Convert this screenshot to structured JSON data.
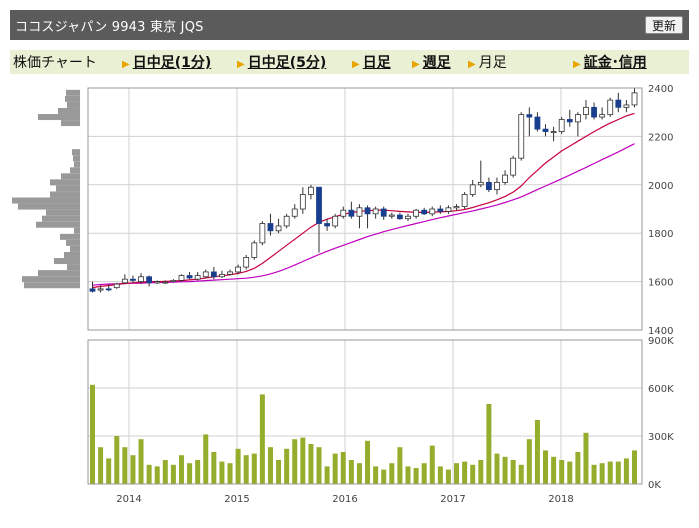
{
  "header": {
    "title": "ココスジャパン 9943 東京 JQS",
    "refresh_label": "更新"
  },
  "tabs": [
    {
      "label": "株価チャート",
      "link": false
    },
    {
      "label": "日中足(1分)",
      "link": true
    },
    {
      "label": "日中足(5分)",
      "link": true
    },
    {
      "label": "日足",
      "link": true
    },
    {
      "label": "週足",
      "link": true
    },
    {
      "label": "月足",
      "link": false
    },
    {
      "label": "証金･信用",
      "link": true
    }
  ],
  "colors": {
    "up": "#ffffff",
    "down": "#1b3f8f",
    "ma_short": "#c8003c",
    "ma_long": "#c000c0",
    "volume": "#94ad2d",
    "grid": "#d0d0d0",
    "header_bg": "#5b5b5b",
    "tab_bg": "#eaf0d4"
  },
  "chart_data": [
    {
      "type": "candlestick",
      "ylim": [
        1400,
        2400
      ],
      "yticks": [
        "2400",
        "2200",
        "2000",
        "1800",
        "1600",
        "1400"
      ],
      "xticks": [
        "2014",
        "2015",
        "2016",
        "2017",
        "2018"
      ],
      "candles": [
        [
          1570,
          1560,
          1600,
          1555
        ],
        [
          1565,
          1570,
          1585,
          1555
        ],
        [
          1570,
          1568,
          1590,
          1560
        ],
        [
          1575,
          1590,
          1595,
          1570
        ],
        [
          1595,
          1610,
          1630,
          1590
        ],
        [
          1610,
          1605,
          1625,
          1595
        ],
        [
          1600,
          1620,
          1635,
          1590
        ],
        [
          1620,
          1595,
          1625,
          1580
        ],
        [
          1595,
          1600,
          1605,
          1590
        ],
        [
          1595,
          1598,
          1605,
          1590
        ],
        [
          1600,
          1605,
          1610,
          1595
        ],
        [
          1605,
          1625,
          1630,
          1600
        ],
        [
          1625,
          1615,
          1640,
          1610
        ],
        [
          1610,
          1625,
          1640,
          1605
        ],
        [
          1620,
          1640,
          1650,
          1615
        ],
        [
          1640,
          1620,
          1660,
          1610
        ],
        [
          1620,
          1630,
          1645,
          1615
        ],
        [
          1630,
          1640,
          1650,
          1625
        ],
        [
          1640,
          1660,
          1670,
          1630
        ],
        [
          1660,
          1700,
          1710,
          1650
        ],
        [
          1700,
          1760,
          1770,
          1690
        ],
        [
          1760,
          1840,
          1850,
          1750
        ],
        [
          1840,
          1810,
          1880,
          1790
        ],
        [
          1810,
          1830,
          1860,
          1800
        ],
        [
          1830,
          1870,
          1880,
          1820
        ],
        [
          1870,
          1900,
          1920,
          1860
        ],
        [
          1900,
          1960,
          1990,
          1880
        ],
        [
          1960,
          1990,
          2000,
          1940
        ],
        [
          1990,
          1840,
          1990,
          1720
        ],
        [
          1840,
          1830,
          1860,
          1810
        ],
        [
          1830,
          1870,
          1880,
          1820
        ],
        [
          1870,
          1895,
          1910,
          1860
        ],
        [
          1895,
          1870,
          1930,
          1860
        ],
        [
          1870,
          1905,
          1920,
          1820
        ],
        [
          1905,
          1880,
          1915,
          1820
        ],
        [
          1880,
          1900,
          1910,
          1860
        ],
        [
          1900,
          1870,
          1910,
          1855
        ],
        [
          1870,
          1875,
          1885,
          1860
        ],
        [
          1875,
          1860,
          1885,
          1855
        ],
        [
          1860,
          1870,
          1880,
          1850
        ],
        [
          1870,
          1895,
          1900,
          1860
        ],
        [
          1895,
          1880,
          1905,
          1875
        ],
        [
          1880,
          1900,
          1910,
          1870
        ],
        [
          1900,
          1890,
          1915,
          1880
        ],
        [
          1890,
          1905,
          1915,
          1880
        ],
        [
          1905,
          1910,
          1920,
          1895
        ],
        [
          1910,
          1960,
          1970,
          1900
        ],
        [
          1960,
          2000,
          2020,
          1950
        ],
        [
          2000,
          2010,
          2100,
          1990
        ],
        [
          2010,
          1980,
          2030,
          1970
        ],
        [
          1980,
          2010,
          2030,
          1960
        ],
        [
          2010,
          2040,
          2060,
          2000
        ],
        [
          2040,
          2110,
          2120,
          2030
        ],
        [
          2110,
          2290,
          2300,
          2100
        ],
        [
          2290,
          2280,
          2320,
          2200
        ],
        [
          2280,
          2230,
          2300,
          2220
        ],
        [
          2230,
          2220,
          2250,
          2200
        ],
        [
          2220,
          2220,
          2240,
          2180
        ],
        [
          2220,
          2270,
          2280,
          2210
        ],
        [
          2270,
          2260,
          2310,
          2240
        ],
        [
          2260,
          2290,
          2300,
          2200
        ],
        [
          2290,
          2320,
          2350,
          2270
        ],
        [
          2320,
          2280,
          2340,
          2270
        ],
        [
          2280,
          2290,
          2320,
          2270
        ],
        [
          2290,
          2350,
          2360,
          2280
        ],
        [
          2350,
          2320,
          2380,
          2300
        ],
        [
          2320,
          2330,
          2350,
          2300
        ],
        [
          2330,
          2380,
          2400,
          2320
        ]
      ],
      "ma_short": [
        1575,
        1580,
        1584,
        1588,
        1592,
        1595,
        1598,
        1600,
        1600,
        1601,
        1602,
        1604,
        1607,
        1610,
        1615,
        1620,
        1624,
        1628,
        1634,
        1642,
        1655,
        1675,
        1700,
        1725,
        1750,
        1775,
        1800,
        1825,
        1845,
        1858,
        1868,
        1878,
        1885,
        1890,
        1893,
        1895,
        1895,
        1893,
        1890,
        1888,
        1886,
        1886,
        1887,
        1888,
        1890,
        1893,
        1898,
        1906,
        1916,
        1926,
        1938,
        1952,
        1970,
        1995,
        2030,
        2060,
        2090,
        2115,
        2140,
        2160,
        2180,
        2200,
        2220,
        2238,
        2255,
        2270,
        2285,
        2295
      ],
      "ma_long": [
        1585,
        1588,
        1590,
        1591,
        1592,
        1593,
        1594,
        1595,
        1596,
        1597,
        1598,
        1599,
        1600,
        1602,
        1604,
        1606,
        1608,
        1610,
        1612,
        1614,
        1618,
        1624,
        1632,
        1642,
        1654,
        1668,
        1683,
        1698,
        1712,
        1725,
        1738,
        1750,
        1762,
        1774,
        1786,
        1796,
        1806,
        1815,
        1824,
        1832,
        1840,
        1848,
        1856,
        1864,
        1871,
        1878,
        1885,
        1892,
        1900,
        1908,
        1917,
        1927,
        1938,
        1950,
        1965,
        1980,
        1995,
        2010,
        2025,
        2040,
        2056,
        2072,
        2088,
        2104,
        2120,
        2136,
        2153,
        2170
      ]
    },
    {
      "type": "bar",
      "title": "volume",
      "ylim": [
        0,
        900000
      ],
      "yticks": [
        "900K",
        "600K",
        "300K",
        "0K"
      ],
      "values": [
        620000,
        230000,
        160000,
        300000,
        230000,
        180000,
        280000,
        120000,
        110000,
        150000,
        120000,
        180000,
        130000,
        150000,
        310000,
        200000,
        140000,
        130000,
        220000,
        180000,
        190000,
        560000,
        230000,
        150000,
        220000,
        280000,
        290000,
        250000,
        230000,
        110000,
        190000,
        200000,
        150000,
        130000,
        270000,
        110000,
        90000,
        130000,
        230000,
        110000,
        100000,
        130000,
        240000,
        110000,
        90000,
        130000,
        140000,
        120000,
        150000,
        500000,
        190000,
        170000,
        150000,
        120000,
        280000,
        400000,
        210000,
        170000,
        150000,
        140000,
        200000,
        320000,
        120000,
        130000,
        140000,
        140000,
        160000,
        210000
      ]
    },
    {
      "type": "bar",
      "title": "price-by-volume",
      "bars": [
        [
          2380,
          14
        ],
        [
          2355,
          15
        ],
        [
          2330,
          13
        ],
        [
          2305,
          22
        ],
        [
          2280,
          42
        ],
        [
          2255,
          19
        ],
        [
          2135,
          8
        ],
        [
          2110,
          7
        ],
        [
          2085,
          6
        ],
        [
          2060,
          10
        ],
        [
          2035,
          19
        ],
        [
          2010,
          30
        ],
        [
          1985,
          24
        ],
        [
          1960,
          30
        ],
        [
          1935,
          68
        ],
        [
          1910,
          62
        ],
        [
          1885,
          34
        ],
        [
          1860,
          38
        ],
        [
          1835,
          44
        ],
        [
          1810,
          6
        ],
        [
          1785,
          20
        ],
        [
          1760,
          14
        ],
        [
          1735,
          10
        ],
        [
          1710,
          16
        ],
        [
          1685,
          26
        ],
        [
          1660,
          13
        ],
        [
          1635,
          42
        ],
        [
          1610,
          58
        ],
        [
          1585,
          56
        ]
      ]
    }
  ]
}
